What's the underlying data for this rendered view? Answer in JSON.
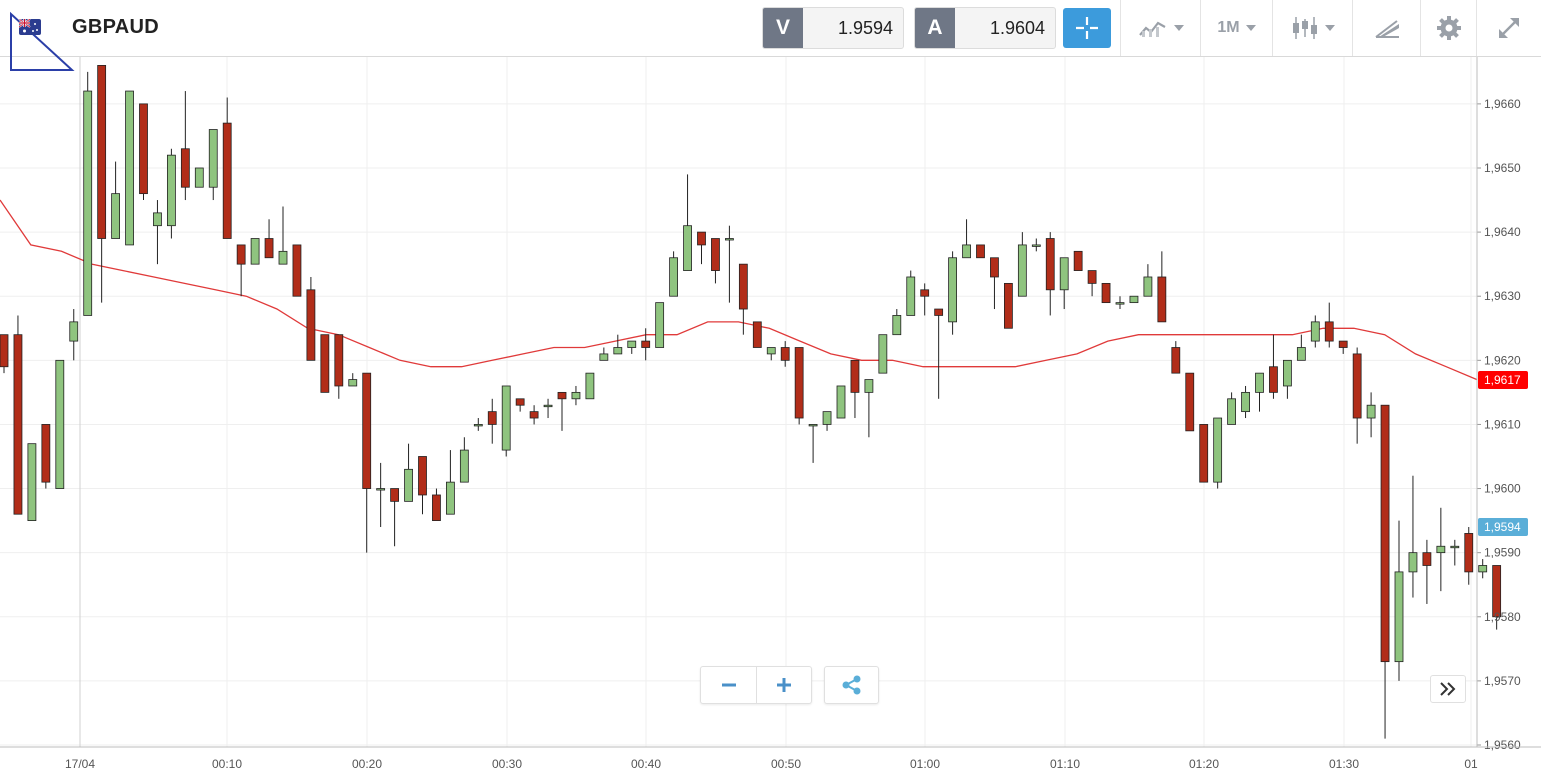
{
  "header": {
    "symbol": "GBPAUD",
    "flag_icon": "gb-au-flag-icon",
    "sell": {
      "tag": "V",
      "value": "1.9594"
    },
    "buy": {
      "tag": "A",
      "value": "1.9604"
    },
    "timeframe": "1M",
    "icons": [
      "crosshair-icon",
      "indicators-icon",
      "candlestick-type-icon",
      "drawing-tools-icon",
      "gear-icon",
      "expand-icon"
    ]
  },
  "colors": {
    "bull": "#8fc47f",
    "bear": "#b12d19",
    "ma": "#e03a3a",
    "accent": "#3c9bdc",
    "ask_tag": "#ff0000",
    "bid_tag": "#5aaed8"
  },
  "price_tags": {
    "ma": "1,9617",
    "bid": "1,9594"
  },
  "chart_data": {
    "type": "candlestick",
    "ylim": [
      1.956,
      1.9667
    ],
    "y_ticks": [
      "1,9660",
      "1,9650",
      "1,9640",
      "1,9630",
      "1,9620",
      "1,9610",
      "1,9600",
      "1,9590",
      "1,9580",
      "1,9570",
      "1,9560"
    ],
    "x_ticks": [
      "17/04",
      "00:10",
      "00:20",
      "00:30",
      "00:40",
      "00:50",
      "01:00",
      "01:10",
      "01:20",
      "01:30",
      "01"
    ],
    "candles": [
      [
        1.9624,
        1.9619,
        1.9624,
        1.9618
      ],
      [
        1.9624,
        1.9596,
        1.9627,
        1.9596
      ],
      [
        1.9595,
        1.9607,
        1.9607,
        1.9595
      ],
      [
        1.961,
        1.9601,
        1.961,
        1.96
      ],
      [
        1.96,
        1.962,
        1.962,
        1.96
      ],
      [
        1.9623,
        1.9626,
        1.9628,
        1.962
      ],
      [
        1.9627,
        1.9662,
        1.9665,
        1.9627
      ],
      [
        1.9666,
        1.9639,
        1.9666,
        1.9629
      ],
      [
        1.9639,
        1.9646,
        1.9651,
        1.9639
      ],
      [
        1.9638,
        1.9662,
        1.9662,
        1.9638
      ],
      [
        1.966,
        1.9646,
        1.966,
        1.9645
      ],
      [
        1.9641,
        1.9643,
        1.9645,
        1.9635
      ],
      [
        1.9641,
        1.9652,
        1.9653,
        1.9639
      ],
      [
        1.9653,
        1.9647,
        1.9662,
        1.9645
      ],
      [
        1.9647,
        1.965,
        1.965,
        1.9647
      ],
      [
        1.9647,
        1.9656,
        1.9656,
        1.9645
      ],
      [
        1.9657,
        1.9639,
        1.9661,
        1.9639
      ],
      [
        1.9638,
        1.9635,
        1.9638,
        1.963
      ],
      [
        1.9635,
        1.9639,
        1.9639,
        1.9635
      ],
      [
        1.9639,
        1.9636,
        1.9642,
        1.9636
      ],
      [
        1.9635,
        1.9637,
        1.9644,
        1.9636
      ],
      [
        1.9638,
        1.963,
        1.9638,
        1.963
      ],
      [
        1.9631,
        1.962,
        1.9633,
        1.962
      ],
      [
        1.9624,
        1.9615,
        1.9624,
        1.9615
      ],
      [
        1.9624,
        1.9616,
        1.9624,
        1.9614
      ],
      [
        1.9616,
        1.9617,
        1.9618,
        1.9616
      ],
      [
        1.9618,
        1.96,
        1.9618,
        1.959
      ],
      [
        1.96,
        1.96,
        1.9604,
        1.9594
      ],
      [
        1.96,
        1.9598,
        1.96,
        1.9591
      ],
      [
        1.9598,
        1.9603,
        1.9607,
        1.9598
      ],
      [
        1.9605,
        1.9599,
        1.9605,
        1.9596
      ],
      [
        1.9599,
        1.9595,
        1.96,
        1.9595
      ],
      [
        1.9596,
        1.9601,
        1.9606,
        1.9596
      ],
      [
        1.9601,
        1.9606,
        1.9608,
        1.9601
      ],
      [
        1.961,
        1.961,
        1.9611,
        1.9609
      ],
      [
        1.9612,
        1.961,
        1.9614,
        1.9607
      ],
      [
        1.9606,
        1.9616,
        1.9616,
        1.9605
      ],
      [
        1.9614,
        1.9613,
        1.9614,
        1.9612
      ],
      [
        1.9612,
        1.9611,
        1.9613,
        1.961
      ],
      [
        1.9613,
        1.9613,
        1.9614,
        1.9611
      ],
      [
        1.9615,
        1.9614,
        1.9615,
        1.9609
      ],
      [
        1.9614,
        1.9615,
        1.9616,
        1.9613
      ],
      [
        1.9614,
        1.9618,
        1.9618,
        1.9614
      ],
      [
        1.962,
        1.9621,
        1.9622,
        1.962
      ],
      [
        1.9621,
        1.9622,
        1.9624,
        1.9621
      ],
      [
        1.9622,
        1.9623,
        1.9623,
        1.9621
      ],
      [
        1.9623,
        1.9622,
        1.9625,
        1.962
      ],
      [
        1.9622,
        1.9629,
        1.9629,
        1.9622
      ],
      [
        1.963,
        1.9636,
        1.9637,
        1.963
      ],
      [
        1.9634,
        1.9641,
        1.9649,
        1.9634
      ],
      [
        1.964,
        1.9638,
        1.964,
        1.9635
      ],
      [
        1.9639,
        1.9634,
        1.9639,
        1.9632
      ],
      [
        1.9639,
        1.9639,
        1.9641,
        1.9629
      ],
      [
        1.9635,
        1.9628,
        1.9635,
        1.9624
      ],
      [
        1.9626,
        1.9622,
        1.9626,
        1.9622
      ],
      [
        1.9621,
        1.9622,
        1.9622,
        1.962
      ],
      [
        1.9622,
        1.962,
        1.9623,
        1.9619
      ],
      [
        1.9622,
        1.9611,
        1.9622,
        1.961
      ],
      [
        1.961,
        1.961,
        1.961,
        1.9604
      ],
      [
        1.961,
        1.9612,
        1.9612,
        1.9609
      ],
      [
        1.9611,
        1.9616,
        1.9616,
        1.9611
      ],
      [
        1.962,
        1.9615,
        1.962,
        1.9611
      ],
      [
        1.9615,
        1.9617,
        1.9617,
        1.9608
      ],
      [
        1.9618,
        1.9624,
        1.9624,
        1.9618
      ],
      [
        1.9624,
        1.9627,
        1.9628,
        1.9624
      ],
      [
        1.9627,
        1.9633,
        1.9634,
        1.9627
      ],
      [
        1.9631,
        1.963,
        1.9632,
        1.9627
      ],
      [
        1.9628,
        1.9627,
        1.9628,
        1.9614
      ],
      [
        1.9626,
        1.9636,
        1.9637,
        1.9624
      ],
      [
        1.9636,
        1.9638,
        1.9642,
        1.9636
      ],
      [
        1.9638,
        1.9636,
        1.9638,
        1.9636
      ],
      [
        1.9636,
        1.9633,
        1.9636,
        1.9628
      ],
      [
        1.9632,
        1.9625,
        1.9632,
        1.9625
      ],
      [
        1.963,
        1.9638,
        1.964,
        1.963
      ],
      [
        1.9638,
        1.9638,
        1.9639,
        1.9637
      ],
      [
        1.9639,
        1.9631,
        1.964,
        1.9627
      ],
      [
        1.9631,
        1.9636,
        1.9636,
        1.9628
      ],
      [
        1.9637,
        1.9634,
        1.9637,
        1.9634
      ],
      [
        1.9634,
        1.9632,
        1.9634,
        1.963
      ],
      [
        1.9632,
        1.9629,
        1.9632,
        1.9629
      ],
      [
        1.9629,
        1.9629,
        1.963,
        1.9628
      ],
      [
        1.9629,
        1.963,
        1.963,
        1.9629
      ],
      [
        1.963,
        1.9633,
        1.9635,
        1.963
      ],
      [
        1.9633,
        1.9626,
        1.9637,
        1.9626
      ],
      [
        1.9622,
        1.9618,
        1.9623,
        1.9618
      ],
      [
        1.9618,
        1.9609,
        1.9618,
        1.9609
      ],
      [
        1.961,
        1.9601,
        1.961,
        1.9601
      ],
      [
        1.9601,
        1.9611,
        1.9611,
        1.96
      ],
      [
        1.961,
        1.9614,
        1.9615,
        1.961
      ],
      [
        1.9612,
        1.9615,
        1.9616,
        1.9611
      ],
      [
        1.9615,
        1.9618,
        1.9618,
        1.9612
      ],
      [
        1.9619,
        1.9615,
        1.9624,
        1.9614
      ],
      [
        1.9616,
        1.962,
        1.962,
        1.9614
      ],
      [
        1.962,
        1.9622,
        1.9624,
        1.962
      ],
      [
        1.9623,
        1.9626,
        1.9627,
        1.9622
      ],
      [
        1.9626,
        1.9623,
        1.9629,
        1.9622
      ],
      [
        1.9623,
        1.9622,
        1.9623,
        1.9621
      ],
      [
        1.9621,
        1.9611,
        1.9622,
        1.9607
      ],
      [
        1.9611,
        1.9613,
        1.9615,
        1.9608
      ],
      [
        1.9613,
        1.9573,
        1.9613,
        1.9561
      ],
      [
        1.9573,
        1.9587,
        1.9595,
        1.957
      ],
      [
        1.9587,
        1.959,
        1.9602,
        1.9583
      ],
      [
        1.959,
        1.9588,
        1.9592,
        1.9582
      ],
      [
        1.959,
        1.9591,
        1.9597,
        1.9584
      ],
      [
        1.9591,
        1.9591,
        1.9592,
        1.9588
      ],
      [
        1.9593,
        1.9587,
        1.9594,
        1.9585
      ],
      [
        1.9587,
        1.9588,
        1.9589,
        1.9586
      ],
      [
        1.9588,
        1.958,
        1.9588,
        1.9578
      ]
    ],
    "ma_series": [
      1.9645,
      1.9638,
      1.9637,
      1.9635,
      1.9634,
      1.9633,
      1.9632,
      1.9631,
      1.963,
      1.9628,
      1.9625,
      1.9624,
      1.9622,
      1.962,
      1.9619,
      1.9619,
      1.962,
      1.9621,
      1.9622,
      1.9622,
      1.9623,
      1.9624,
      1.9624,
      1.9626,
      1.9626,
      1.9625,
      1.9623,
      1.9621,
      1.962,
      1.962,
      1.9619,
      1.9619,
      1.9619,
      1.9619,
      1.962,
      1.9621,
      1.9623,
      1.9624,
      1.9624,
      1.9624,
      1.9624,
      1.9624,
      1.9624,
      1.9625,
      1.9625,
      1.9624,
      1.9621,
      1.9619,
      1.9617
    ]
  }
}
